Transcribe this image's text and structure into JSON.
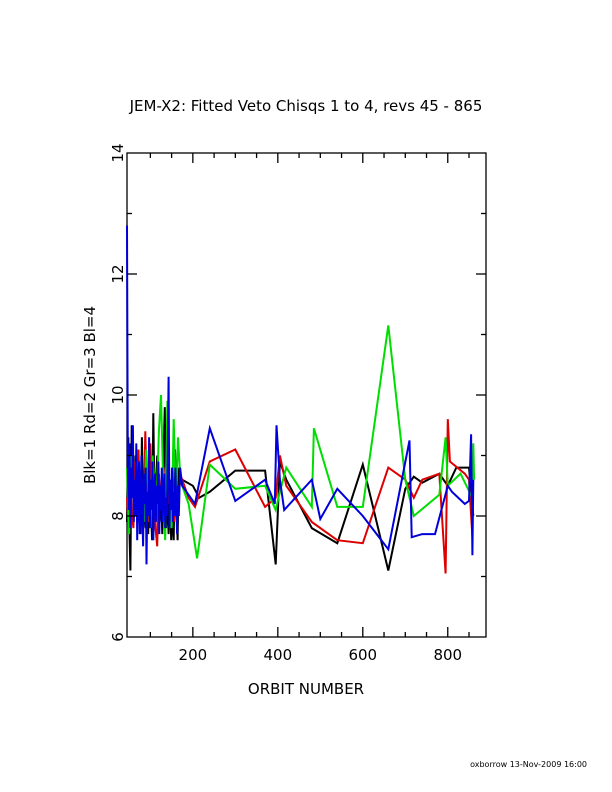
{
  "chart_data": {
    "type": "line",
    "title": "JEM-X2: Fitted Veto Chisqs 1 to 4, revs 45 - 865",
    "xlabel": "ORBIT NUMBER",
    "ylabel": "Blk=1 Rd=2 Gr=3 Bl=4",
    "xlim": [
      45,
      890
    ],
    "ylim": [
      6,
      14
    ],
    "x_ticks": [
      200,
      400,
      600,
      800
    ],
    "y_ticks": [
      6,
      8,
      10,
      12,
      14
    ],
    "grid": false,
    "series": [
      {
        "color": "#000000",
        "points": [
          [
            45,
            7.9
          ],
          [
            48,
            9.3
          ],
          [
            50,
            8.0
          ],
          [
            53,
            7.1
          ],
          [
            56,
            9.5
          ],
          [
            59,
            8.5
          ],
          [
            62,
            8.2
          ],
          [
            65,
            9.0
          ],
          [
            68,
            8.8
          ],
          [
            71,
            7.9
          ],
          [
            74,
            8.6
          ],
          [
            77,
            7.7
          ],
          [
            80,
            9.3
          ],
          [
            83,
            8.2
          ],
          [
            86,
            8.0
          ],
          [
            89,
            7.8
          ],
          [
            92,
            8.6
          ],
          [
            95,
            7.7
          ],
          [
            98,
            8.9
          ],
          [
            101,
            8.2
          ],
          [
            104,
            7.6
          ],
          [
            107,
            9.7
          ],
          [
            110,
            8.1
          ],
          [
            113,
            8.5
          ],
          [
            116,
            9.0
          ],
          [
            119,
            8.3
          ],
          [
            122,
            7.9
          ],
          [
            125,
            8.4
          ],
          [
            128,
            7.7
          ],
          [
            131,
            9.0
          ],
          [
            134,
            9.8
          ],
          [
            137,
            7.8
          ],
          [
            140,
            8.3
          ],
          [
            143,
            7.7
          ],
          [
            146,
            8.4
          ],
          [
            149,
            7.6
          ],
          [
            152,
            8.1
          ],
          [
            155,
            7.6
          ],
          [
            158,
            9.1
          ],
          [
            161,
            8.4
          ],
          [
            164,
            7.6
          ],
          [
            167,
            8.8
          ],
          [
            170,
            8.6
          ],
          [
            175,
            8.6
          ],
          [
            200,
            8.5
          ],
          [
            215,
            8.3
          ],
          [
            240,
            8.4
          ],
          [
            300,
            8.75
          ],
          [
            370,
            8.75
          ],
          [
            395,
            7.2
          ],
          [
            405,
            8.9
          ],
          [
            420,
            8.6
          ],
          [
            480,
            7.8
          ],
          [
            540,
            7.55
          ],
          [
            600,
            8.85
          ],
          [
            660,
            7.1
          ],
          [
            700,
            8.45
          ],
          [
            720,
            8.65
          ],
          [
            740,
            8.55
          ],
          [
            780,
            8.7
          ],
          [
            800,
            8.5
          ],
          [
            820,
            8.8
          ],
          [
            850,
            8.8
          ],
          [
            860,
            8.0
          ]
        ]
      },
      {
        "color": "#dd0000",
        "points": [
          [
            45,
            8.3
          ],
          [
            48,
            7.9
          ],
          [
            52,
            8.8
          ],
          [
            56,
            8.1
          ],
          [
            60,
            7.8
          ],
          [
            64,
            8.9
          ],
          [
            68,
            8.2
          ],
          [
            72,
            9.1
          ],
          [
            76,
            8.0
          ],
          [
            80,
            8.6
          ],
          [
            84,
            7.9
          ],
          [
            88,
            9.4
          ],
          [
            92,
            8.3
          ],
          [
            96,
            7.9
          ],
          [
            100,
            9.2
          ],
          [
            104,
            8.1
          ],
          [
            108,
            8.5
          ],
          [
            112,
            7.8
          ],
          [
            116,
            7.5
          ],
          [
            120,
            8.7
          ],
          [
            124,
            8.2
          ],
          [
            128,
            8.4
          ],
          [
            132,
            7.9
          ],
          [
            136,
            8.8
          ],
          [
            140,
            8.2
          ],
          [
            144,
            8.5
          ],
          [
            148,
            7.8
          ],
          [
            152,
            8.6
          ],
          [
            156,
            7.9
          ],
          [
            160,
            8.4
          ],
          [
            164,
            8.1
          ],
          [
            168,
            8.5
          ],
          [
            175,
            8.6
          ],
          [
            190,
            8.3
          ],
          [
            205,
            8.15
          ],
          [
            240,
            8.9
          ],
          [
            300,
            9.1
          ],
          [
            370,
            8.15
          ],
          [
            395,
            8.3
          ],
          [
            405,
            9.0
          ],
          [
            420,
            8.5
          ],
          [
            480,
            7.9
          ],
          [
            540,
            7.6
          ],
          [
            600,
            7.55
          ],
          [
            660,
            8.8
          ],
          [
            700,
            8.6
          ],
          [
            720,
            8.3
          ],
          [
            740,
            8.6
          ],
          [
            780,
            8.7
          ],
          [
            795,
            7.05
          ],
          [
            800,
            9.6
          ],
          [
            805,
            8.9
          ],
          [
            840,
            8.7
          ],
          [
            850,
            8.6
          ],
          [
            858,
            7.65
          ]
        ]
      },
      {
        "color": "#00dd00",
        "points": [
          [
            45,
            8.8
          ],
          [
            50,
            7.7
          ],
          [
            55,
            9.0
          ],
          [
            60,
            8.6
          ],
          [
            65,
            8.1
          ],
          [
            70,
            8.9
          ],
          [
            75,
            8.2
          ],
          [
            80,
            8.5
          ],
          [
            85,
            7.9
          ],
          [
            90,
            9.1
          ],
          [
            95,
            8.3
          ],
          [
            100,
            7.8
          ],
          [
            105,
            9.0
          ],
          [
            110,
            8.5
          ],
          [
            115,
            8.2
          ],
          [
            120,
            9.4
          ],
          [
            125,
            10.0
          ],
          [
            130,
            8.6
          ],
          [
            135,
            7.6
          ],
          [
            140,
            9.9
          ],
          [
            145,
            8.3
          ],
          [
            150,
            7.8
          ],
          [
            155,
            9.6
          ],
          [
            160,
            8.2
          ],
          [
            165,
            9.3
          ],
          [
            170,
            8.7
          ],
          [
            175,
            8.5
          ],
          [
            190,
            8.2
          ],
          [
            210,
            7.3
          ],
          [
            240,
            8.85
          ],
          [
            300,
            8.45
          ],
          [
            370,
            8.5
          ],
          [
            395,
            8.1
          ],
          [
            405,
            8.4
          ],
          [
            420,
            8.8
          ],
          [
            480,
            8.15
          ],
          [
            485,
            9.45
          ],
          [
            540,
            8.15
          ],
          [
            600,
            8.15
          ],
          [
            660,
            11.15
          ],
          [
            700,
            8.6
          ],
          [
            720,
            8.0
          ],
          [
            780,
            8.35
          ],
          [
            795,
            9.3
          ],
          [
            800,
            8.5
          ],
          [
            830,
            8.7
          ],
          [
            858,
            8.3
          ],
          [
            860,
            9.2
          ],
          [
            862,
            8.6
          ]
        ]
      },
      {
        "color": "#0000dd",
        "points": [
          [
            45,
            12.8
          ],
          [
            47,
            8.9
          ],
          [
            49,
            8.1
          ],
          [
            51,
            9.2
          ],
          [
            53,
            7.8
          ],
          [
            55,
            8.8
          ],
          [
            57,
            8.3
          ],
          [
            59,
            9.5
          ],
          [
            61,
            7.9
          ],
          [
            63,
            8.6
          ],
          [
            65,
            8.0
          ],
          [
            67,
            9.2
          ],
          [
            69,
            7.6
          ],
          [
            71,
            8.5
          ],
          [
            73,
            8.9
          ],
          [
            75,
            7.7
          ],
          [
            77,
            8.4
          ],
          [
            79,
            9.0
          ],
          [
            81,
            8.1
          ],
          [
            83,
            7.5
          ],
          [
            85,
            8.7
          ],
          [
            87,
            8.2
          ],
          [
            89,
            8.8
          ],
          [
            91,
            7.2
          ],
          [
            93,
            8.4
          ],
          [
            95,
            8.0
          ],
          [
            97,
            9.3
          ],
          [
            99,
            7.8
          ],
          [
            101,
            8.6
          ],
          [
            103,
            8.1
          ],
          [
            105,
            8.9
          ],
          [
            107,
            7.6
          ],
          [
            109,
            8.3
          ],
          [
            111,
            8.7
          ],
          [
            113,
            7.9
          ],
          [
            115,
            8.5
          ],
          [
            117,
            8.2
          ],
          [
            119,
            8.9
          ],
          [
            121,
            7.7
          ],
          [
            123,
            8.5
          ],
          [
            125,
            8.1
          ],
          [
            127,
            8.8
          ],
          [
            129,
            7.9
          ],
          [
            131,
            8.4
          ],
          [
            133,
            8.7
          ],
          [
            135,
            7.8
          ],
          [
            137,
            8.3
          ],
          [
            139,
            8.0
          ],
          [
            141,
            9.2
          ],
          [
            143,
            10.3
          ],
          [
            145,
            7.8
          ],
          [
            147,
            8.6
          ],
          [
            149,
            8.1
          ],
          [
            151,
            8.8
          ],
          [
            153,
            7.9
          ],
          [
            155,
            8.4
          ],
          [
            157,
            8.0
          ],
          [
            159,
            8.8
          ],
          [
            161,
            8.2
          ],
          [
            163,
            7.7
          ],
          [
            165,
            8.5
          ],
          [
            167,
            8.0
          ],
          [
            170,
            8.8
          ],
          [
            175,
            8.5
          ],
          [
            205,
            8.2
          ],
          [
            240,
            9.45
          ],
          [
            300,
            8.25
          ],
          [
            370,
            8.6
          ],
          [
            393,
            8.2
          ],
          [
            397,
            9.5
          ],
          [
            405,
            8.6
          ],
          [
            415,
            8.1
          ],
          [
            480,
            8.6
          ],
          [
            500,
            7.95
          ],
          [
            540,
            8.45
          ],
          [
            600,
            8.0
          ],
          [
            660,
            7.45
          ],
          [
            710,
            9.25
          ],
          [
            715,
            7.65
          ],
          [
            740,
            7.7
          ],
          [
            770,
            7.7
          ],
          [
            800,
            8.5
          ],
          [
            810,
            8.4
          ],
          [
            840,
            8.2
          ],
          [
            850,
            8.25
          ],
          [
            855,
            9.35
          ],
          [
            858,
            7.35
          ],
          [
            860,
            8.6
          ]
        ]
      }
    ]
  },
  "footer": {
    "credit": "oxborrow 13-Nov-2009 16:00"
  }
}
